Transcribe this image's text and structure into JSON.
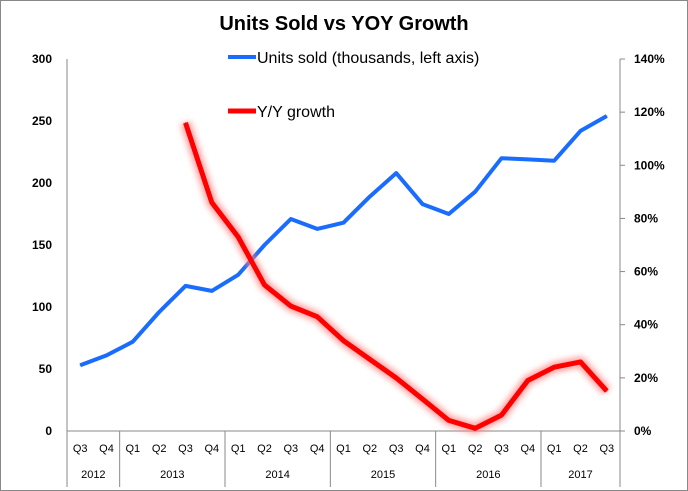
{
  "chart_data": {
    "type": "line",
    "title": "Units Sold vs YOY Growth",
    "x": [
      "Q3",
      "Q4",
      "Q1",
      "Q2",
      "Q3",
      "Q4",
      "Q1",
      "Q2",
      "Q3",
      "Q4",
      "Q1",
      "Q2",
      "Q3",
      "Q4",
      "Q1",
      "Q2",
      "Q3",
      "Q4",
      "Q1",
      "Q2",
      "Q3"
    ],
    "year_groups": [
      {
        "label": "2012",
        "count": 2
      },
      {
        "label": "2013",
        "count": 4
      },
      {
        "label": "2014",
        "count": 4
      },
      {
        "label": "2015",
        "count": 4
      },
      {
        "label": "2016",
        "count": 4
      },
      {
        "label": "2017",
        "count": 3
      }
    ],
    "y_left": {
      "range": [
        0,
        300
      ],
      "ticks": [
        "0",
        "50",
        "100",
        "150",
        "200",
        "250",
        "300"
      ]
    },
    "y_right": {
      "range": [
        0,
        140
      ],
      "ticks": [
        "0%",
        "20%",
        "40%",
        "60%",
        "80%",
        "100%",
        "120%",
        "140%"
      ]
    },
    "grid": false,
    "legend_placement": "top-center",
    "series": [
      {
        "name": "Units sold (thousands, left axis)",
        "axis": "left",
        "color": "#1a6cff",
        "values": [
          53,
          61,
          72,
          96,
          117,
          113,
          126,
          150,
          171,
          163,
          168,
          189,
          208,
          183,
          175,
          193,
          220,
          219,
          218,
          242,
          254
        ]
      },
      {
        "name": "Y/Y growth",
        "axis": "right",
        "color": "#ff0000",
        "glow": true,
        "values": [
          null,
          null,
          null,
          null,
          116,
          86,
          73,
          55,
          47,
          43,
          34,
          27,
          20,
          12,
          4,
          1,
          6,
          19,
          24,
          26,
          15
        ]
      }
    ]
  }
}
